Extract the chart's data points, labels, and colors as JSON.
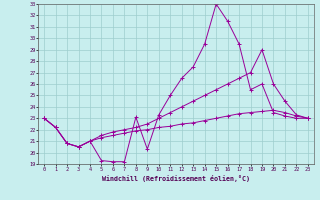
{
  "xlabel": "Windchill (Refroidissement éolien,°C)",
  "xlim": [
    -0.5,
    23.5
  ],
  "ylim": [
    19,
    33
  ],
  "yticks": [
    19,
    20,
    21,
    22,
    23,
    24,
    25,
    26,
    27,
    28,
    29,
    30,
    31,
    32,
    33
  ],
  "xticks": [
    0,
    1,
    2,
    3,
    4,
    5,
    6,
    7,
    8,
    9,
    10,
    11,
    12,
    13,
    14,
    15,
    16,
    17,
    18,
    19,
    20,
    21,
    22,
    23
  ],
  "bg_color": "#c8eeee",
  "grid_color": "#9ecece",
  "line_color": "#990099",
  "line1_x": [
    0,
    1,
    2,
    3,
    4,
    5,
    6,
    7,
    8,
    9,
    10,
    11,
    12,
    13,
    14,
    15,
    16,
    17,
    18,
    19,
    20,
    21,
    22,
    23
  ],
  "line1_y": [
    23.0,
    22.2,
    20.8,
    20.5,
    21.0,
    19.3,
    19.2,
    19.2,
    23.1,
    20.3,
    23.3,
    25.0,
    26.5,
    27.5,
    29.5,
    33.0,
    31.5,
    29.5,
    25.5,
    26.0,
    23.5,
    23.2,
    23.0,
    23.0
  ],
  "line2_x": [
    0,
    1,
    2,
    3,
    4,
    5,
    6,
    7,
    8,
    9,
    10,
    11,
    12,
    13,
    14,
    15,
    16,
    17,
    18,
    19,
    20,
    21,
    22,
    23
  ],
  "line2_y": [
    23.0,
    22.2,
    20.8,
    20.5,
    21.0,
    21.5,
    21.8,
    22.0,
    22.2,
    22.5,
    23.0,
    23.5,
    24.0,
    24.5,
    25.0,
    25.5,
    26.0,
    26.5,
    27.0,
    29.0,
    26.0,
    24.5,
    23.3,
    23.0
  ],
  "line3_x": [
    0,
    1,
    2,
    3,
    4,
    5,
    6,
    7,
    8,
    9,
    10,
    11,
    12,
    13,
    14,
    15,
    16,
    17,
    18,
    19,
    20,
    21,
    22,
    23
  ],
  "line3_y": [
    23.0,
    22.2,
    20.8,
    20.5,
    21.0,
    21.3,
    21.5,
    21.7,
    21.9,
    22.0,
    22.2,
    22.3,
    22.5,
    22.6,
    22.8,
    23.0,
    23.2,
    23.4,
    23.5,
    23.6,
    23.7,
    23.5,
    23.2,
    23.0
  ]
}
